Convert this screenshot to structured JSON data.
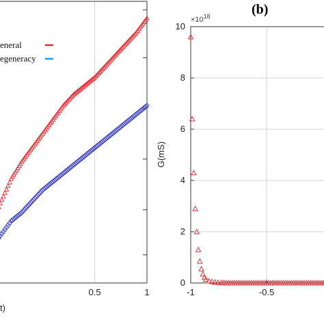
{
  "chart_data": [
    {
      "type": "scatter",
      "panel": "left",
      "xlim": [
        -0.42,
        1
      ],
      "ylim": [
        0,
        1
      ],
      "x_ticks": [
        "0.5",
        "1"
      ],
      "xlabel": "t)",
      "grid": true,
      "legend_position": "top-left",
      "series": [
        {
          "name": "eneral",
          "color": "#e0282e",
          "marker": "triangle-open",
          "x": [
            -0.42,
            -0.3,
            -0.2,
            -0.1,
            0.0,
            0.1,
            0.2,
            0.3,
            0.4,
            0.5,
            0.6,
            0.7,
            0.8,
            0.9,
            1.0
          ],
          "y": [
            0.27,
            0.37,
            0.43,
            0.48,
            0.53,
            0.58,
            0.63,
            0.67,
            0.7,
            0.73,
            0.77,
            0.81,
            0.85,
            0.89,
            0.94
          ]
        },
        {
          "name": "egeneracy",
          "color": "#2a2fd0",
          "marker": "circle-open",
          "x": [
            -0.42,
            -0.3,
            -0.2,
            -0.1,
            0.0,
            0.1,
            0.2,
            0.3,
            0.4,
            0.5,
            0.6,
            0.7,
            0.8,
            0.9,
            1.0
          ],
          "y": [
            0.16,
            0.22,
            0.25,
            0.29,
            0.33,
            0.36,
            0.39,
            0.42,
            0.45,
            0.48,
            0.51,
            0.54,
            0.57,
            0.6,
            0.63
          ]
        }
      ],
      "legend_line_colors": [
        "#e0282e",
        "#1f9de0"
      ]
    },
    {
      "type": "scatter",
      "panel": "right",
      "panel_label": "(b)",
      "ylabel": "G(mS)",
      "y_exponent": "×10",
      "y_exponent_power": "18",
      "xlim": [
        -1,
        -0.1
      ],
      "ylim": [
        0,
        10
      ],
      "x_ticks": [
        "-1",
        "-0.5"
      ],
      "y_ticks": [
        "0",
        "2",
        "4",
        "6",
        "8",
        "10"
      ],
      "grid": true,
      "series": [
        {
          "color": "#e0282e",
          "marker": "triangle-open",
          "x": [
            -1.0,
            -0.99,
            -0.98,
            -0.97,
            -0.96,
            -0.95,
            -0.94,
            -0.93,
            -0.92,
            -0.91,
            -0.9,
            -0.88,
            -0.86,
            -0.84,
            -0.82,
            -0.8,
            -0.75,
            -0.7,
            -0.65,
            -0.6,
            -0.55,
            -0.5,
            -0.45,
            -0.4,
            -0.35,
            -0.3,
            -0.25,
            -0.2,
            -0.15,
            -0.1
          ],
          "y": [
            9.6,
            6.4,
            4.3,
            2.9,
            2.0,
            1.3,
            0.85,
            0.55,
            0.35,
            0.22,
            0.14,
            0.08,
            0.05,
            0.03,
            0.02,
            0.01,
            0.0,
            0.0,
            0.0,
            0.0,
            0.0,
            0.0,
            0.0,
            0.0,
            0.0,
            0.0,
            0.0,
            0.0,
            0.0,
            0.0
          ]
        }
      ]
    }
  ]
}
